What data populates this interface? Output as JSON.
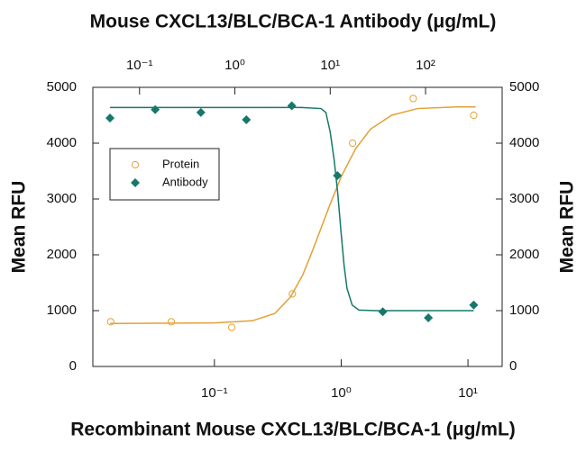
{
  "chart_data": {
    "type": "scatter",
    "xlabel": "Recombinant Mouse CXCL13/BLC/BCA-1 (μg/mL)",
    "x2label": "Mouse CXCL13/BLC/BCA-1 Antibody (μg/mL)",
    "ylabel": "Mean RFU",
    "y2label": "Mean RFU",
    "xscale": "log",
    "xlim": [
      0.011,
      18.6
    ],
    "xticks": [
      {
        "value": 0.1,
        "label": "10⁻¹"
      },
      {
        "value": 1,
        "label": "10⁰"
      },
      {
        "value": 10,
        "label": "10¹"
      }
    ],
    "x2lim": [
      0.0324,
      636
    ],
    "x2ticks": [
      {
        "value": 0.1,
        "label": "10⁻¹"
      },
      {
        "value": 1,
        "label": "10⁰"
      },
      {
        "value": 10,
        "label": "10¹"
      },
      {
        "value": 100,
        "label": "10²"
      }
    ],
    "ylim": [
      0,
      5000
    ],
    "yticks": [
      0,
      1000,
      2000,
      3000,
      4000,
      5000
    ],
    "y2lim": [
      0,
      5000
    ],
    "y2ticks": [
      0,
      1000,
      2000,
      3000,
      4000,
      5000
    ],
    "legend": "upper left",
    "series": [
      {
        "name": "Protein",
        "color": "#e3a135",
        "marker": "circle",
        "xaxis": "x",
        "x": [
          0.0152,
          0.0457,
          0.137,
          0.412,
          1.23,
          3.7,
          11.1
        ],
        "values": [
          800,
          800,
          700,
          1300,
          4000,
          4800,
          4500
        ]
      },
      {
        "name": "Antibody",
        "color": "#16786b",
        "marker": "diamond",
        "xaxis": "x2",
        "x": [
          0.049,
          0.146,
          0.44,
          1.32,
          3.95,
          11.9,
          35.6,
          107,
          320
        ],
        "values": [
          4450,
          4600,
          4550,
          4420,
          4670,
          3420,
          980,
          870,
          1100
        ]
      },
      {
        "color": "#e3a135",
        "marker": "line",
        "xaxis": "x",
        "x": [
          0.015,
          0.1,
          0.2,
          0.3,
          0.4,
          0.5,
          0.6,
          0.7,
          0.8,
          1,
          1.3,
          1.7,
          2.5,
          4,
          8,
          11.5
        ],
        "values": [
          770,
          780,
          820,
          950,
          1250,
          1650,
          2100,
          2500,
          2850,
          3400,
          3900,
          4250,
          4500,
          4620,
          4650,
          4650
        ]
      },
      {
        "color": "#16786b",
        "marker": "line",
        "xaxis": "x2",
        "x": [
          0.049,
          5,
          8,
          9,
          10,
          11,
          12,
          13,
          14,
          15,
          17,
          20,
          30,
          320
        ],
        "values": [
          4640,
          4640,
          4620,
          4550,
          4200,
          3700,
          3100,
          2400,
          1800,
          1400,
          1100,
          1010,
          1000,
          1000
        ]
      }
    ]
  }
}
